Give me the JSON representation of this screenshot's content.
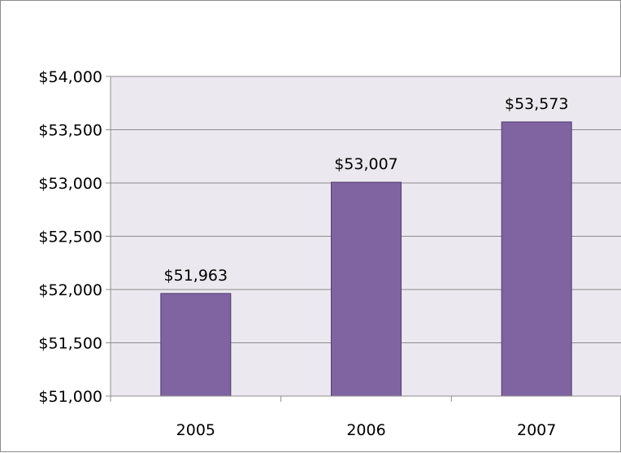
{
  "chart_data": {
    "type": "bar",
    "title": "",
    "xlabel": "",
    "ylabel": "",
    "categories": [
      "2005",
      "2006",
      "2007"
    ],
    "values": [
      51963,
      53007,
      53573
    ],
    "data_labels": [
      "$51,963",
      "$53,007",
      "$53,573"
    ],
    "ylim": [
      51000,
      54000
    ],
    "y_ticks": [
      51000,
      51500,
      52000,
      52500,
      53000,
      53500,
      54000
    ],
    "y_tick_labels": [
      "$51,000",
      "$51,500",
      "$52,000",
      "$52,500",
      "$53,000",
      "$53,500",
      "$54,000"
    ],
    "grid": true,
    "legend": "none"
  },
  "colors": {
    "bar_fill": "#8064a2",
    "bar_stroke": "#4f3a6e",
    "plot_background": "#ebe8ef",
    "gridline": "#8c8c8c",
    "axis": "#8c8c8c",
    "frame_border": "#8c8c8c"
  }
}
